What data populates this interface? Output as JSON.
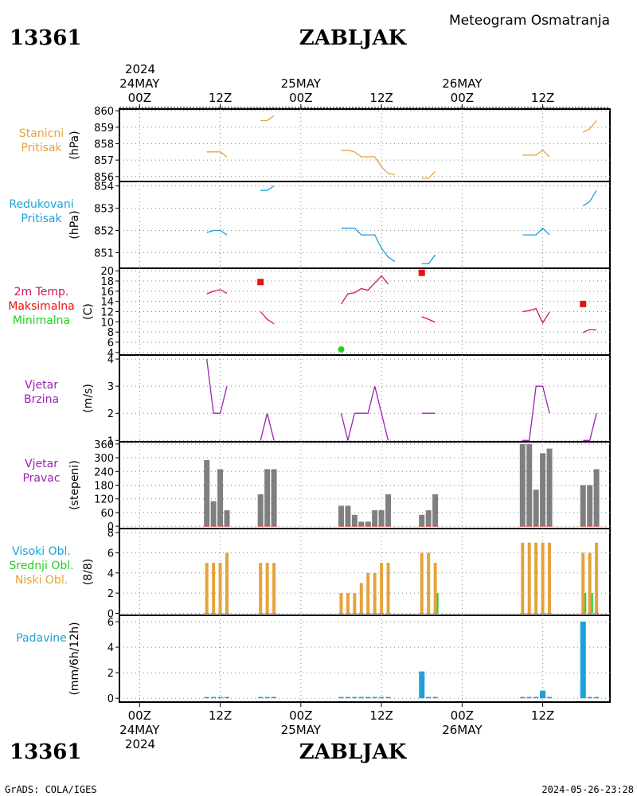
{
  "header": {
    "station_id": "13361",
    "station_name": "ZABLJAK",
    "subtitle": "Meteogram Osmatranja"
  },
  "footer": {
    "station_id": "13361",
    "station_name": "ZABLJAK",
    "credit": "GrADS: COLA/IGES",
    "timestamp": "2024-05-26-23:28"
  },
  "time_axis": {
    "top_year": "2024",
    "bottom_year": "2024",
    "labels": [
      {
        "t": 0,
        "hour": "00Z",
        "date": "24MAY"
      },
      {
        "t": 12,
        "hour": "12Z",
        "date": ""
      },
      {
        "t": 24,
        "hour": "00Z",
        "date": "25MAY"
      },
      {
        "t": 36,
        "hour": "12Z",
        "date": ""
      },
      {
        "t": 48,
        "hour": "00Z",
        "date": "26MAY"
      },
      {
        "t": 60,
        "hour": "12Z",
        "date": ""
      }
    ],
    "range_hours": [
      -3,
      70
    ]
  },
  "colors": {
    "pressure": "#e6a23c",
    "reduced": "#1fa0d8",
    "temp": "#d1155a",
    "tmax": "#e8120e",
    "tmin": "#1ed21e",
    "wind": "#9b23b4",
    "winddir_bar": "#7f7f7f",
    "winddir_base": "#e05050",
    "cloud_low": "#e6a23c",
    "cloud_mid": "#1ed21e",
    "cloud_high": "#1fa0d8",
    "precip": "#1fa0d8"
  },
  "panels": {
    "pressure": {
      "labels": [
        "Stanicni",
        "Pritisak"
      ],
      "unit": "(hPa)",
      "ticks": [
        "856",
        "857",
        "858",
        "859",
        "860"
      ]
    },
    "reduced": {
      "labels": [
        "Redukovani",
        "Pritisak"
      ],
      "unit": "(hPa)",
      "ticks": [
        "851",
        "852",
        "853",
        "854"
      ]
    },
    "temp": {
      "labels": [
        "2m Temp.",
        "Maksimalna",
        "Minimalna"
      ],
      "unit": "(C)",
      "ticks": [
        "4",
        "6",
        "8",
        "10",
        "12",
        "14",
        "16",
        "18",
        "20"
      ]
    },
    "wind_speed": {
      "labels": [
        "Vjetar",
        "Brzina"
      ],
      "unit": "(m/s)",
      "ticks": [
        "1",
        "2",
        "3",
        "4"
      ]
    },
    "wind_dir": {
      "labels": [
        "Vjetar",
        "Pravac"
      ],
      "unit": "(stepeni)",
      "ticks": [
        "0",
        "60",
        "120",
        "180",
        "240",
        "300",
        "360"
      ]
    },
    "clouds": {
      "labels": [
        "Visoki Obl.",
        "Srednji Obl.",
        "Niski Obl."
      ],
      "unit": "(8/8)",
      "ticks": [
        "0",
        "2",
        "4",
        "6",
        "8"
      ]
    },
    "precip": {
      "labels": [
        "Padavine"
      ],
      "unit": "(mm/6h/12h)",
      "ticks": [
        "0",
        "2",
        "4",
        "6"
      ]
    }
  },
  "chart_data": [
    {
      "type": "line",
      "name": "station_pressure",
      "ylabel": "(hPa)",
      "ylim": [
        855.7,
        860.1
      ],
      "segments": [
        [
          [
            10,
            857.5
          ],
          [
            11,
            857.5
          ],
          [
            12,
            857.5
          ],
          [
            13,
            857.2
          ]
        ],
        [
          [
            18,
            859.4
          ],
          [
            19,
            859.4
          ],
          [
            20,
            859.7
          ]
        ],
        [
          [
            30,
            857.6
          ],
          [
            31,
            857.6
          ],
          [
            32,
            857.5
          ],
          [
            33,
            857.2
          ],
          [
            34,
            857.2
          ],
          [
            35,
            857.2
          ],
          [
            36,
            856.6
          ],
          [
            37,
            856.2
          ],
          [
            38,
            856.1
          ]
        ],
        [
          [
            42,
            855.9
          ],
          [
            43,
            855.9
          ],
          [
            44,
            856.3
          ]
        ],
        [
          [
            57,
            857.3
          ],
          [
            58,
            857.3
          ],
          [
            59,
            857.3
          ],
          [
            60,
            857.6
          ],
          [
            61,
            857.2
          ]
        ],
        [
          [
            66,
            858.7
          ],
          [
            67,
            858.9
          ],
          [
            68,
            859.4
          ]
        ]
      ]
    },
    {
      "type": "line",
      "name": "reduced_pressure",
      "ylabel": "(hPa)",
      "ylim": [
        850.3,
        854.2
      ],
      "segments": [
        [
          [
            10,
            851.9
          ],
          [
            11,
            852.0
          ],
          [
            12,
            852.0
          ],
          [
            13,
            851.8
          ]
        ],
        [
          [
            18,
            853.8
          ],
          [
            19,
            853.8
          ],
          [
            20,
            854.0
          ]
        ],
        [
          [
            30,
            852.1
          ],
          [
            31,
            852.1
          ],
          [
            32,
            852.1
          ],
          [
            33,
            851.8
          ],
          [
            34,
            851.8
          ],
          [
            35,
            851.8
          ],
          [
            36,
            851.2
          ],
          [
            37,
            850.8
          ],
          [
            38,
            850.6
          ]
        ],
        [
          [
            42,
            850.5
          ],
          [
            43,
            850.5
          ],
          [
            44,
            850.9
          ]
        ],
        [
          [
            57,
            851.8
          ],
          [
            58,
            851.8
          ],
          [
            59,
            851.8
          ],
          [
            60,
            852.1
          ],
          [
            61,
            851.8
          ]
        ],
        [
          [
            66,
            853.1
          ],
          [
            67,
            853.3
          ],
          [
            68,
            853.8
          ]
        ]
      ]
    },
    {
      "type": "line",
      "name": "temperature_2m",
      "ylabel": "(C)",
      "ylim": [
        3.5,
        20.5
      ],
      "segments": [
        [
          [
            10,
            15.5
          ],
          [
            11,
            16.0
          ],
          [
            12,
            16.3
          ],
          [
            13,
            15.6
          ]
        ],
        [
          [
            18,
            12.0
          ],
          [
            19,
            10.5
          ],
          [
            20,
            9.6
          ]
        ],
        [
          [
            30,
            13.5
          ],
          [
            31,
            15.5
          ],
          [
            32,
            15.7
          ],
          [
            33,
            16.5
          ],
          [
            34,
            16.2
          ],
          [
            35,
            17.6
          ],
          [
            36,
            19.0
          ],
          [
            37,
            17.4
          ]
        ],
        [
          [
            42,
            11.0
          ],
          [
            43,
            10.5
          ],
          [
            44,
            9.9
          ]
        ],
        [
          [
            57,
            12.0
          ],
          [
            58,
            12.2
          ],
          [
            59,
            12.6
          ],
          [
            60,
            9.8
          ],
          [
            61,
            11.9
          ]
        ],
        [
          [
            66,
            7.9
          ],
          [
            67,
            8.5
          ],
          [
            68,
            8.4
          ]
        ]
      ],
      "max_points": [
        [
          18,
          17.8
        ],
        [
          42,
          19.6
        ],
        [
          66,
          13.5
        ]
      ],
      "min_points": [
        [
          30,
          4.6
        ]
      ]
    },
    {
      "type": "line",
      "name": "wind_speed",
      "ylabel": "(m/s)",
      "ylim": [
        0.95,
        4.15
      ],
      "segments": [
        [
          [
            10,
            4
          ],
          [
            11,
            2
          ],
          [
            12,
            2
          ],
          [
            13,
            3
          ]
        ],
        [
          [
            18,
            1
          ],
          [
            19,
            2
          ],
          [
            20,
            1
          ]
        ],
        [
          [
            30,
            2
          ],
          [
            31,
            1
          ],
          [
            32,
            2
          ],
          [
            33,
            2
          ],
          [
            34,
            2
          ],
          [
            35,
            3
          ],
          [
            36,
            2
          ],
          [
            37,
            1
          ]
        ],
        [
          [
            42,
            2
          ],
          [
            43,
            2
          ],
          [
            44,
            2
          ]
        ],
        [
          [
            57,
            1
          ],
          [
            58,
            1
          ],
          [
            59,
            3
          ],
          [
            60,
            3
          ],
          [
            61,
            2
          ]
        ],
        [
          [
            66,
            1
          ],
          [
            67,
            1
          ],
          [
            68,
            2
          ]
        ]
      ]
    },
    {
      "type": "bar",
      "name": "wind_direction",
      "ylabel": "(stepeni)",
      "ylim": [
        -10,
        370
      ],
      "x": [
        10,
        11,
        12,
        13,
        18,
        19,
        20,
        30,
        31,
        32,
        33,
        34,
        35,
        36,
        37,
        42,
        43,
        44,
        57,
        58,
        59,
        60,
        61,
        66,
        67,
        68
      ],
      "values": [
        290,
        110,
        250,
        70,
        140,
        250,
        250,
        90,
        90,
        50,
        20,
        20,
        70,
        70,
        140,
        50,
        70,
        140,
        360,
        360,
        160,
        320,
        340,
        180,
        180,
        250
      ]
    },
    {
      "type": "bar",
      "name": "cloud_cover",
      "ylabel": "(8/8)",
      "ylim": [
        -0.2,
        8.4
      ],
      "x": [
        10,
        11,
        12,
        13,
        18,
        19,
        20,
        30,
        31,
        32,
        33,
        34,
        35,
        36,
        37,
        42,
        43,
        44,
        57,
        58,
        59,
        60,
        61,
        66,
        67,
        68
      ],
      "series": [
        {
          "name": "Niski Obl.",
          "values": [
            5,
            5,
            5,
            6,
            5,
            5,
            5,
            2,
            2,
            2,
            3,
            4,
            4,
            5,
            5,
            6,
            6,
            5,
            7,
            7,
            7,
            7,
            7,
            6,
            6,
            7
          ]
        },
        {
          "name": "Srednji Obl.",
          "values": [
            0,
            0,
            0,
            0,
            0,
            0,
            0,
            0,
            0,
            0,
            0,
            0,
            0,
            0,
            0,
            0,
            0,
            2,
            0,
            0,
            0,
            0,
            0,
            2,
            2,
            0
          ]
        },
        {
          "name": "Visoki Obl.",
          "values": [
            0,
            0,
            0,
            0,
            0,
            0,
            0,
            0,
            0,
            0,
            0,
            0,
            0,
            0,
            0,
            0,
            0,
            0,
            0,
            0,
            0,
            0,
            0,
            0,
            0,
            0
          ]
        }
      ]
    },
    {
      "type": "bar",
      "name": "precipitation",
      "ylabel": "(mm/6h/12h)",
      "ylim": [
        -0.3,
        6.5
      ],
      "x": [
        10,
        11,
        12,
        13,
        18,
        19,
        20,
        30,
        31,
        32,
        33,
        34,
        35,
        36,
        37,
        42,
        43,
        44,
        57,
        58,
        59,
        60,
        61,
        66,
        67,
        68
      ],
      "values": [
        0.1,
        0.1,
        0.1,
        0.1,
        0.1,
        0.1,
        0.1,
        0.1,
        0.1,
        0.1,
        0.1,
        0.1,
        0.1,
        0.1,
        0.1,
        2.1,
        0.1,
        0.1,
        0.1,
        0.1,
        0.1,
        0.6,
        0.1,
        6.0,
        0.1,
        0.1
      ]
    }
  ]
}
